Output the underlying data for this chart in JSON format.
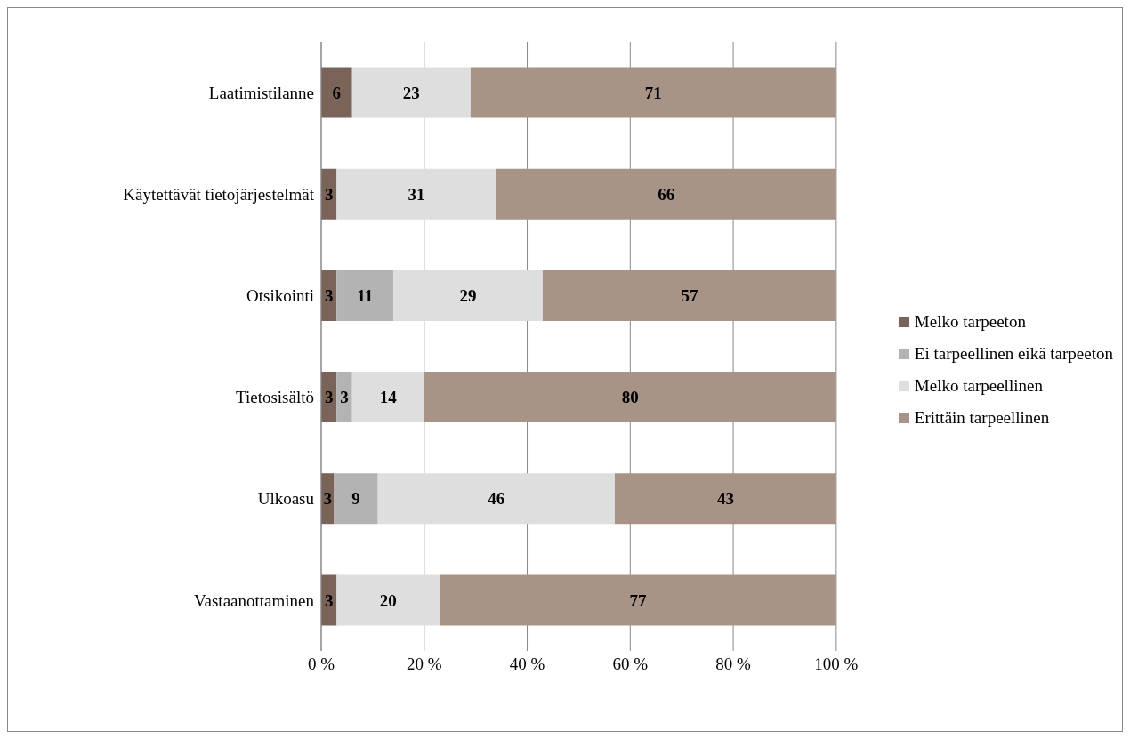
{
  "chart_data": {
    "type": "bar",
    "orientation": "horizontal",
    "stacked": true,
    "grid": "x",
    "legend": "right",
    "categories": [
      "Laatimistilanne",
      "Käytettävät tietojärjestelmät",
      "Otsikointi",
      "Tietosisältö",
      "Ulkoasu",
      "Vastaanottaminen"
    ],
    "series": [
      {
        "name": "Melko tarpeeton",
        "color": "#7a6358",
        "values": [
          6,
          3,
          3,
          3,
          2.5,
          3
        ],
        "value_labels": [
          "6",
          "3",
          "3",
          "3",
          "3",
          "3"
        ]
      },
      {
        "name": "Ei tarpeellinen eikä tarpeeton",
        "color": "#b3b3b3",
        "values": [
          null,
          null,
          11,
          3,
          8.5,
          null
        ],
        "value_labels": [
          null,
          null,
          "11",
          "3",
          "9",
          null
        ]
      },
      {
        "name": "Melko tarpeellinen",
        "color": "#dedede",
        "values": [
          23,
          31,
          29,
          14,
          46,
          20
        ],
        "value_labels": [
          "23",
          "31",
          "29",
          "14",
          "46",
          "20"
        ]
      },
      {
        "name": "Erittäin tarpeellinen",
        "color": "#a89387",
        "values": [
          71,
          66,
          57,
          80,
          43,
          77
        ],
        "value_labels": [
          "71",
          "66",
          "57",
          "80",
          "43",
          "77"
        ]
      }
    ],
    "xlim": [
      0,
      100
    ],
    "xticks": [
      {
        "value": 0,
        "label": "0 %"
      },
      {
        "value": 20,
        "label": "20 %"
      },
      {
        "value": 40,
        "label": "40 %"
      },
      {
        "value": 60,
        "label": "60 %"
      },
      {
        "value": 80,
        "label": "80 %"
      },
      {
        "value": 100,
        "label": "100 %"
      }
    ]
  }
}
